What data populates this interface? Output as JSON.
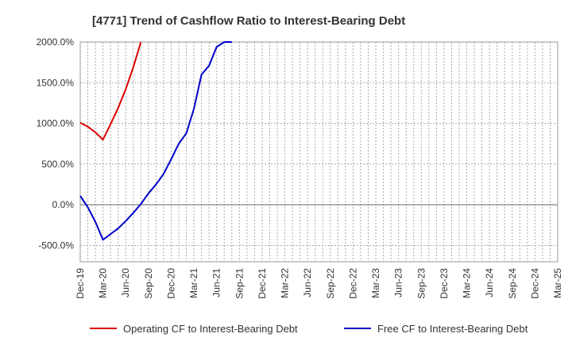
{
  "chart_data": {
    "type": "line",
    "title": "[4771]  Trend of Cashflow Ratio to Interest-Bearing Debt",
    "xlabel": "",
    "ylabel": "",
    "ylim": [
      -700,
      2000
    ],
    "yticks": [
      2000,
      1500,
      1000,
      500,
      0,
      -500
    ],
    "ytick_labels": [
      "2000.0%",
      "1500.0%",
      "1000.0%",
      "500.0%",
      "0.0%",
      "-500.0%"
    ],
    "categories": [
      "Dec-19",
      "Mar-20",
      "Jun-20",
      "Sep-20",
      "Dec-20",
      "Mar-21",
      "Jun-21",
      "Sep-21",
      "Dec-21",
      "Mar-22",
      "Jun-22",
      "Sep-22",
      "Dec-22",
      "Mar-23",
      "Jun-23",
      "Sep-23",
      "Dec-23",
      "Mar-24",
      "Jun-24",
      "Sep-24",
      "Dec-24",
      "Mar-25"
    ],
    "grid": true,
    "legend_position": "bottom",
    "series": [
      {
        "name": "Operating CF to Interest-Bearing Debt",
        "color": "#dd0000",
        "x": [
          0,
          0.333,
          0.667,
          1,
          1.333,
          1.667,
          2,
          2.333,
          2.667
        ],
        "values": [
          1010,
          960,
          890,
          800,
          990,
          1190,
          1420,
          1690,
          2000
        ]
      },
      {
        "name": "Free CF to Interest-Bearing Debt",
        "color": "#0000cc",
        "x": [
          0,
          0.333,
          0.667,
          1,
          1.333,
          1.667,
          2,
          2.333,
          2.667,
          3,
          3.333,
          3.667,
          4,
          4.333,
          4.667,
          5,
          5.333,
          5.667,
          6,
          6.333,
          6.667
        ],
        "values": [
          110,
          -30,
          -210,
          -430,
          -360,
          -290,
          -200,
          -100,
          10,
          140,
          250,
          380,
          560,
          750,
          880,
          1180,
          1600,
          1710,
          1940,
          2000,
          2000
        ]
      }
    ]
  }
}
